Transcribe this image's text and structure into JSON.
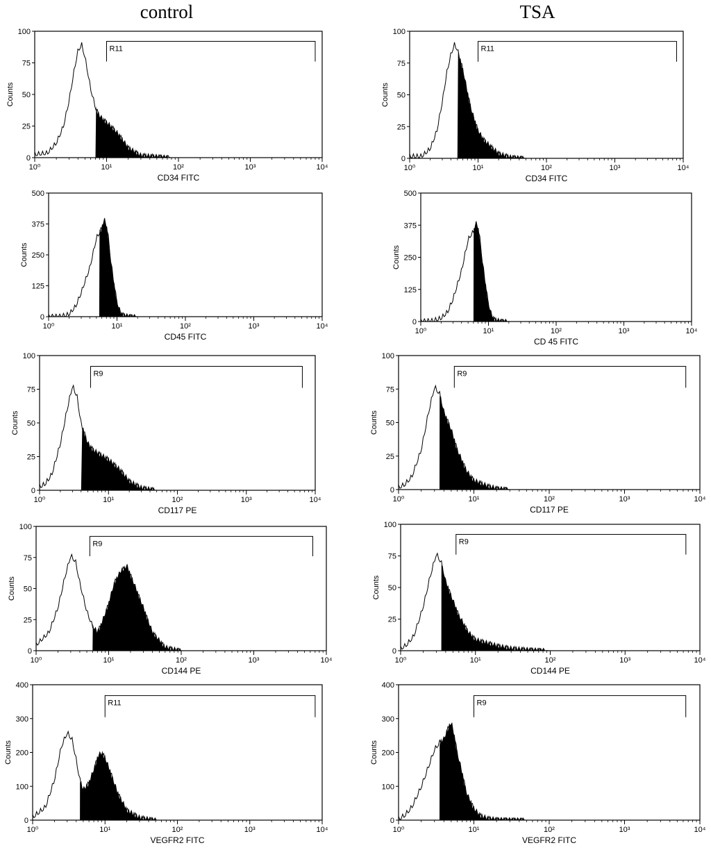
{
  "columns": [
    "control",
    "TSA"
  ],
  "colors": {
    "line": "#000000",
    "fill": "#000000",
    "background": "#ffffff"
  },
  "chart_data": [
    {
      "type": "area",
      "column": "control",
      "xlabel": "CD34 FITC",
      "ylabel": "Counts",
      "xscale": "log",
      "xlim": [
        1,
        10000
      ],
      "ylim": [
        0,
        100
      ],
      "yticks": [
        0,
        25,
        50,
        75,
        100
      ],
      "xticks": [
        1,
        10,
        100,
        1000,
        10000
      ],
      "gate": {
        "label": "R11",
        "from": 10,
        "to": 8000
      },
      "series": [
        {
          "x": [
            1,
            1.5,
            2,
            2.5,
            3,
            3.5,
            4,
            4.5,
            5,
            6,
            7,
            8,
            10,
            12,
            15,
            20,
            30,
            50,
            80,
            1000,
            10000
          ],
          "y": [
            3,
            4,
            12,
            25,
            45,
            68,
            85,
            90,
            80,
            55,
            40,
            33,
            28,
            24,
            18,
            8,
            2,
            1,
            0,
            0,
            0
          ],
          "shaded_from": 7
        }
      ]
    },
    {
      "type": "area",
      "column": "TSA",
      "xlabel": "CD34 FITC",
      "ylabel": "Counts",
      "xscale": "log",
      "xlim": [
        1,
        10000
      ],
      "ylim": [
        0,
        100
      ],
      "yticks": [
        0,
        25,
        50,
        75,
        100
      ],
      "xticks": [
        1,
        10,
        100,
        1000,
        10000
      ],
      "gate": {
        "label": "R11",
        "from": 10,
        "to": 8000
      },
      "series": [
        {
          "x": [
            1,
            1.5,
            2,
            2.5,
            3,
            3.5,
            4,
            4.5,
            5,
            6,
            7,
            8,
            10,
            12,
            15,
            20,
            30,
            50,
            1000,
            10000
          ],
          "y": [
            2,
            2,
            8,
            22,
            45,
            68,
            82,
            90,
            86,
            70,
            52,
            38,
            22,
            15,
            10,
            4,
            1,
            0,
            0,
            0
          ],
          "shaded_from": 5
        }
      ]
    },
    {
      "type": "area",
      "column": "control",
      "xlabel": "CD45 FITC",
      "ylabel": "Counts",
      "xscale": "log",
      "xlim": [
        1,
        10000
      ],
      "ylim": [
        0,
        500
      ],
      "yticks": [
        0,
        125,
        250,
        375,
        500
      ],
      "xticks": [
        1,
        10,
        100,
        1000,
        10000
      ],
      "series": [
        {
          "x": [
            1,
            1.5,
            2,
            2.5,
            3,
            4,
            5,
            5.5,
            6,
            6.5,
            7,
            7.5,
            8,
            9,
            10,
            11,
            12,
            15,
            20,
            10000
          ],
          "y": [
            2,
            3,
            12,
            45,
            100,
            200,
            320,
            340,
            360,
            395,
            370,
            320,
            240,
            140,
            60,
            25,
            8,
            2,
            0,
            0
          ],
          "shaded_from": 5.5
        }
      ]
    },
    {
      "type": "area",
      "column": "TSA",
      "xlabel": "CD 45 FITC",
      "ylabel": "Counts",
      "xscale": "log",
      "xlim": [
        1,
        10000
      ],
      "ylim": [
        0,
        500
      ],
      "yticks": [
        0,
        125,
        250,
        375,
        500
      ],
      "xticks": [
        1,
        10,
        100,
        1000,
        10000
      ],
      "series": [
        {
          "x": [
            1,
            1.5,
            2,
            2.5,
            3,
            4,
            5,
            5.5,
            6,
            6.5,
            7,
            7.5,
            8,
            9,
            10,
            11,
            12,
            15,
            20,
            10000
          ],
          "y": [
            2,
            5,
            15,
            40,
            90,
            200,
            320,
            340,
            350,
            385,
            370,
            320,
            250,
            150,
            70,
            30,
            10,
            2,
            0,
            0
          ],
          "shaded_from": 6
        }
      ]
    },
    {
      "type": "area",
      "column": "control",
      "xlabel": "CD117 PE",
      "ylabel": "Counts",
      "xscale": "log",
      "xlim": [
        1,
        10000
      ],
      "ylim": [
        0,
        100
      ],
      "yticks": [
        0,
        25,
        50,
        75,
        100
      ],
      "xticks": [
        1,
        10,
        100,
        1000,
        10000
      ],
      "gate": {
        "label": "R9",
        "from": 5.5,
        "to": 6500
      },
      "series": [
        {
          "x": [
            1,
            1.2,
            1.5,
            2,
            2.5,
            3,
            3.5,
            4,
            5,
            6,
            8,
            10,
            15,
            20,
            30,
            50,
            10000
          ],
          "y": [
            3,
            5,
            12,
            35,
            60,
            78,
            70,
            50,
            35,
            30,
            26,
            23,
            15,
            7,
            2,
            0,
            0
          ],
          "shaded_from": 4
        }
      ]
    },
    {
      "type": "area",
      "column": "TSA",
      "xlabel": "CD117 PE",
      "ylabel": "Counts",
      "xscale": "log",
      "xlim": [
        1,
        10000
      ],
      "ylim": [
        0,
        100
      ],
      "yticks": [
        0,
        25,
        50,
        75,
        100
      ],
      "xticks": [
        1,
        10,
        100,
        1000,
        10000
      ],
      "gate": {
        "label": "R9",
        "from": 5.5,
        "to": 6500
      },
      "series": [
        {
          "x": [
            1,
            1.2,
            1.5,
            2,
            2.5,
            3,
            3.5,
            4,
            5,
            6,
            8,
            10,
            15,
            20,
            30,
            10000
          ],
          "y": [
            2,
            4,
            10,
            30,
            58,
            77,
            72,
            58,
            45,
            30,
            14,
            7,
            3,
            1,
            0,
            0
          ],
          "shaded_from": 3.5
        }
      ]
    },
    {
      "type": "area",
      "column": "control",
      "xlabel": "CD144 PE",
      "ylabel": "Counts",
      "xscale": "log",
      "xlim": [
        1,
        10000
      ],
      "ylim": [
        0,
        100
      ],
      "yticks": [
        0,
        25,
        50,
        75,
        100
      ],
      "xticks": [
        1,
        10,
        100,
        1000,
        10000
      ],
      "gate": {
        "label": "R9",
        "from": 5.5,
        "to": 6500
      },
      "series": [
        {
          "x": [
            1,
            1.5,
            2,
            2.5,
            3,
            3.5,
            4,
            5,
            6,
            7,
            8,
            10,
            12,
            15,
            18,
            22,
            30,
            40,
            60,
            100,
            10000
          ],
          "y": [
            5,
            15,
            35,
            60,
            77,
            72,
            55,
            32,
            20,
            15,
            22,
            38,
            55,
            65,
            68,
            55,
            35,
            15,
            3,
            0,
            0
          ],
          "shaded_from": 6
        }
      ]
    },
    {
      "type": "area",
      "column": "TSA",
      "xlabel": "CD144 PE",
      "ylabel": "Counts",
      "xscale": "log",
      "xlim": [
        1,
        10000
      ],
      "ylim": [
        0,
        100
      ],
      "yticks": [
        0,
        25,
        50,
        75,
        100
      ],
      "xticks": [
        1,
        10,
        100,
        1000,
        10000
      ],
      "gate": {
        "label": "R9",
        "from": 5.5,
        "to": 6500
      },
      "series": [
        {
          "x": [
            1,
            1.2,
            1.5,
            2,
            2.5,
            3,
            3.5,
            4,
            5,
            6,
            8,
            10,
            15,
            20,
            30,
            50,
            100,
            10000
          ],
          "y": [
            2,
            5,
            12,
            35,
            60,
            77,
            70,
            55,
            40,
            28,
            15,
            9,
            6,
            4,
            2,
            1,
            0,
            0
          ],
          "shaded_from": 3.5
        }
      ]
    },
    {
      "type": "area",
      "column": "control",
      "xlabel": "VEGFR2 FITC",
      "ylabel": "Counts",
      "xscale": "log",
      "xlim": [
        1,
        10000
      ],
      "ylim": [
        0,
        400
      ],
      "yticks": [
        0,
        100,
        200,
        300,
        400
      ],
      "xticks": [
        1,
        10,
        100,
        1000,
        10000
      ],
      "gate": {
        "label": "R11",
        "from": 10,
        "to": 8000
      },
      "series": [
        {
          "x": [
            1,
            1.5,
            2,
            2.5,
            3,
            3.5,
            4,
            4.5,
            5,
            6,
            7,
            8,
            9,
            10,
            12,
            15,
            20,
            30,
            50,
            10000
          ],
          "y": [
            10,
            40,
            120,
            220,
            260,
            240,
            180,
            120,
            90,
            110,
            150,
            190,
            200,
            185,
            140,
            80,
            30,
            8,
            0,
            0
          ],
          "shaded_from": 4.5
        }
      ]
    },
    {
      "type": "area",
      "column": "TSA",
      "xlabel": "VEGFR2 FITC",
      "ylabel": "Counts",
      "xscale": "log",
      "xlim": [
        1,
        10000
      ],
      "ylim": [
        0,
        400
      ],
      "yticks": [
        0,
        100,
        200,
        300,
        400
      ],
      "xticks": [
        1,
        10,
        100,
        1000,
        10000
      ],
      "gate": {
        "label": "R9",
        "from": 10,
        "to": 6500
      },
      "series": [
        {
          "x": [
            1,
            1.2,
            1.5,
            2,
            2.5,
            3,
            3.5,
            4,
            4.5,
            5,
            5.5,
            6,
            7,
            8,
            10,
            12,
            15,
            20,
            30,
            50,
            10000
          ],
          "y": [
            5,
            15,
            40,
            100,
            160,
            210,
            230,
            240,
            270,
            290,
            250,
            200,
            140,
            80,
            35,
            15,
            6,
            2,
            1,
            0,
            0
          ],
          "shaded_from": 3.5
        }
      ]
    }
  ]
}
